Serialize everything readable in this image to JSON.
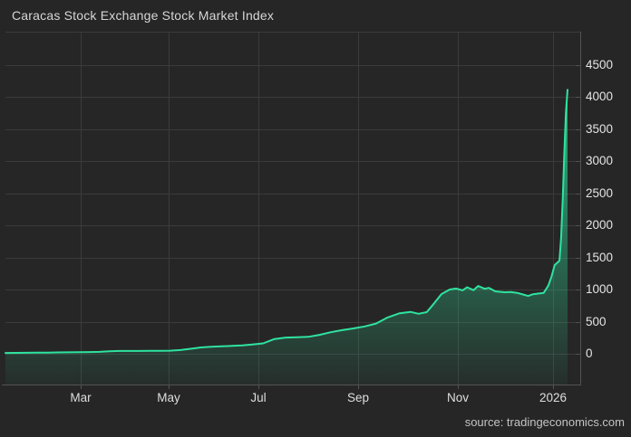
{
  "header": {
    "title": "Caracas Stock Exchange Stock Market Index"
  },
  "footer": {
    "source": "source: tradingeconomics.com"
  },
  "chart_data": {
    "type": "area",
    "title": "Caracas Stock Exchange Stock Market Index",
    "xlabel": "",
    "ylabel": "",
    "legend_position": "none",
    "grid": true,
    "ylim": [
      -480,
      5010
    ],
    "x_range": [
      "2025-01-10",
      "2026-01-10"
    ],
    "y_ticks": [
      0,
      500,
      1000,
      1500,
      2000,
      2500,
      3000,
      3500,
      4000,
      4500
    ],
    "x_ticks": [
      {
        "label": "Mar",
        "date": "2025-03-01"
      },
      {
        "label": "May",
        "date": "2025-05-01"
      },
      {
        "label": "Jul",
        "date": "2025-07-01"
      },
      {
        "label": "Sep",
        "date": "2025-09-01"
      },
      {
        "label": "Nov",
        "date": "2025-11-01"
      },
      {
        "label": "2026",
        "date": "2026-01-01"
      }
    ],
    "colors": {
      "line": "#2fe3a0",
      "fill": "#2fe3a0",
      "background": "#262626",
      "grid": "#3b3b3b",
      "axis": "#525252",
      "text": "#e4e4e4"
    },
    "series": [
      {
        "name": "Caracas Stock Exchange Stock Market Index",
        "points": [
          [
            "2025-01-10",
            13
          ],
          [
            "2025-01-17",
            14
          ],
          [
            "2025-01-24",
            15
          ],
          [
            "2025-01-31",
            17
          ],
          [
            "2025-02-07",
            19
          ],
          [
            "2025-02-14",
            21
          ],
          [
            "2025-02-21",
            23
          ],
          [
            "2025-02-28",
            25
          ],
          [
            "2025-03-07",
            27
          ],
          [
            "2025-03-14",
            30
          ],
          [
            "2025-03-21",
            40
          ],
          [
            "2025-03-28",
            43
          ],
          [
            "2025-04-04",
            43
          ],
          [
            "2025-04-11",
            44
          ],
          [
            "2025-04-18",
            45
          ],
          [
            "2025-04-25",
            46
          ],
          [
            "2025-05-02",
            48
          ],
          [
            "2025-05-09",
            58
          ],
          [
            "2025-05-16",
            78
          ],
          [
            "2025-05-23",
            98
          ],
          [
            "2025-05-30",
            110
          ],
          [
            "2025-06-06",
            116
          ],
          [
            "2025-06-13",
            122
          ],
          [
            "2025-06-20",
            130
          ],
          [
            "2025-06-27",
            145
          ],
          [
            "2025-07-04",
            162
          ],
          [
            "2025-07-11",
            230
          ],
          [
            "2025-07-18",
            252
          ],
          [
            "2025-07-25",
            258
          ],
          [
            "2025-08-01",
            264
          ],
          [
            "2025-08-08",
            295
          ],
          [
            "2025-08-15",
            335
          ],
          [
            "2025-08-22",
            368
          ],
          [
            "2025-08-29",
            395
          ],
          [
            "2025-09-05",
            425
          ],
          [
            "2025-09-12",
            470
          ],
          [
            "2025-09-19",
            565
          ],
          [
            "2025-09-26",
            628
          ],
          [
            "2025-10-03",
            652
          ],
          [
            "2025-10-08",
            622
          ],
          [
            "2025-10-13",
            648
          ],
          [
            "2025-10-17",
            770
          ],
          [
            "2025-10-22",
            930
          ],
          [
            "2025-10-27",
            1000
          ],
          [
            "2025-10-31",
            1015
          ],
          [
            "2025-11-04",
            988
          ],
          [
            "2025-11-07",
            1035
          ],
          [
            "2025-11-11",
            990
          ],
          [
            "2025-11-14",
            1055
          ],
          [
            "2025-11-18",
            1012
          ],
          [
            "2025-11-21",
            1025
          ],
          [
            "2025-11-25",
            972
          ],
          [
            "2025-12-01",
            958
          ],
          [
            "2025-12-05",
            962
          ],
          [
            "2025-12-09",
            948
          ],
          [
            "2025-12-12",
            928
          ],
          [
            "2025-12-16",
            900
          ],
          [
            "2025-12-19",
            925
          ],
          [
            "2025-12-23",
            938
          ],
          [
            "2025-12-26",
            948
          ],
          [
            "2025-12-29",
            1060
          ],
          [
            "2025-12-31",
            1200
          ],
          [
            "2026-01-02",
            1380
          ],
          [
            "2026-01-05",
            1450
          ],
          [
            "2026-01-06",
            1800
          ],
          [
            "2026-01-07",
            2400
          ],
          [
            "2026-01-08",
            3100
          ],
          [
            "2026-01-09",
            3750
          ],
          [
            "2026-01-10",
            4110
          ]
        ]
      }
    ]
  }
}
